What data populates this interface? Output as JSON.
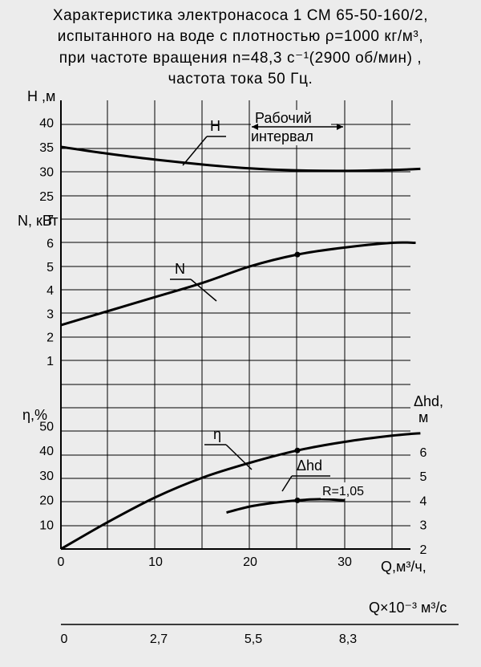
{
  "page_title_lines": [
    "Характеристика электронасоса 1 СМ 65-50-160/2,",
    "испытанного на воде с плотностью ρ=1000 кг/м³,",
    "при частоте вращения n=48,3 с⁻¹(2900 об/мин) ,",
    "частота тока 50 Гц."
  ],
  "chart_data": {
    "type": "line",
    "x": {
      "label": "Q,м³/ч,",
      "range": [
        0,
        38
      ],
      "ticks": [
        0,
        10,
        20,
        30
      ]
    },
    "x2": {
      "label": "Q×10⁻³ м³/с",
      "ticks": [
        {
          "q": 0,
          "label": "0"
        },
        {
          "q": 10,
          "label": "2,7"
        },
        {
          "q": 20,
          "label": "5,5"
        },
        {
          "q": 30,
          "label": "8,3"
        }
      ]
    },
    "axes": {
      "H": {
        "label": "Н ,м",
        "range": [
          22.5,
          42.5
        ],
        "ticks": [
          25,
          30,
          35,
          40
        ]
      },
      "N": {
        "label": "N, кВт",
        "range": [
          0.5,
          7.5
        ],
        "ticks": [
          1,
          2,
          3,
          4,
          5,
          6,
          7
        ]
      },
      "eta": {
        "label": "η,%",
        "range": [
          0,
          53
        ],
        "ticks": [
          10,
          20,
          30,
          40,
          50
        ]
      },
      "hd": {
        "label": "Δhd,\nм",
        "range": [
          2,
          7
        ],
        "ticks": [
          2,
          3,
          4,
          5,
          6
        ]
      }
    },
    "grid": true,
    "series": [
      {
        "name": "Н",
        "axis": "H",
        "points": [
          [
            0,
            35
          ],
          [
            5,
            33.6
          ],
          [
            10,
            32.4
          ],
          [
            15,
            31.4
          ],
          [
            20,
            30.6
          ],
          [
            25,
            30.2
          ],
          [
            30,
            30.1
          ],
          [
            35,
            30.3
          ],
          [
            38,
            30.5
          ]
        ]
      },
      {
        "name": "N",
        "axis": "N",
        "points": [
          [
            0,
            2.5
          ],
          [
            5,
            3.1
          ],
          [
            10,
            3.7
          ],
          [
            15,
            4.3
          ],
          [
            20,
            5.0
          ],
          [
            25,
            5.5
          ],
          [
            30,
            5.8
          ],
          [
            35,
            6.0
          ],
          [
            37.5,
            6.0
          ]
        ]
      },
      {
        "name": "η",
        "axis": "eta",
        "points": [
          [
            0,
            0
          ],
          [
            5,
            11
          ],
          [
            10,
            21
          ],
          [
            15,
            29
          ],
          [
            20,
            35
          ],
          [
            25,
            40
          ],
          [
            30,
            43.5
          ],
          [
            35,
            46
          ],
          [
            38,
            47
          ]
        ]
      },
      {
        "name": "Δhd",
        "axis": "hd",
        "points": [
          [
            17.5,
            3.5
          ],
          [
            20,
            3.75
          ],
          [
            22.5,
            3.9
          ],
          [
            25,
            4.0
          ],
          [
            27.5,
            4.05
          ],
          [
            30,
            4.0
          ]
        ]
      }
    ],
    "marked_points": [
      {
        "series": "N",
        "x": 25,
        "y": 5.5
      },
      {
        "series": "η",
        "x": 25,
        "y": 40
      },
      {
        "series": "Δhd",
        "x": 25,
        "y": 4.0
      }
    ],
    "annotations": {
      "working_interval": {
        "label_lines": [
          "Рабочий",
          "интервал"
        ],
        "x_range": [
          20,
          30
        ]
      },
      "R_label": "R=1,05"
    }
  }
}
